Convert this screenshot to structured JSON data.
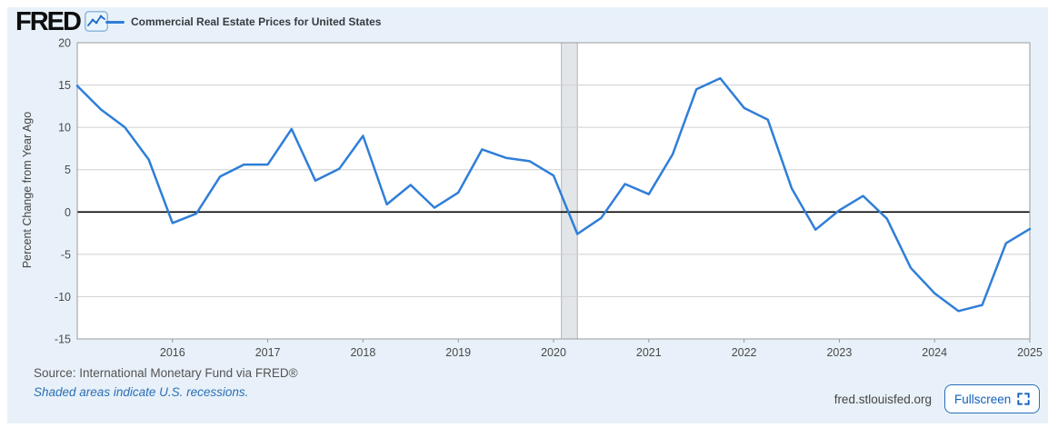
{
  "header": {
    "logo_text": "FRED",
    "legend_label": "Commercial Real Estate Prices for United States"
  },
  "footer": {
    "source": "Source: International Monetary Fund via FRED®",
    "recession_note": "Shaded areas indicate U.S. recessions.",
    "site": "fred.stlouisfed.org",
    "fullscreen_label": "Fullscreen"
  },
  "colors": {
    "card_background": "#e8f1f9",
    "plot_background": "#ffffff",
    "line": "#2f7ed8",
    "gridline": "#cfcfcf",
    "plot_border": "#9a9a9a",
    "zero_line": "#000000",
    "recession_fill": "#e3e6e9",
    "recession_edge": "#aeb4ba",
    "tick_label": "#494949",
    "link_blue": "#2a6fb7",
    "button_blue": "#1560bd"
  },
  "chart_data": {
    "type": "line",
    "title": "Commercial Real Estate Prices for United States",
    "ylabel": "Percent Change from Year Ago",
    "xlabel": "",
    "units": "percent change from year ago",
    "frequency": "quarterly",
    "xlim": [
      2015.0,
      2025.0
    ],
    "ylim": [
      -15,
      20
    ],
    "y_ticks": [
      20,
      15,
      10,
      5,
      0,
      -5,
      -10,
      -15
    ],
    "x_ticks": [
      2016,
      2017,
      2018,
      2019,
      2020,
      2021,
      2022,
      2023,
      2024,
      2025
    ],
    "grid": "horizontal",
    "legend_position": "top-left",
    "x_start": 2015.0,
    "x_step": 0.25,
    "periods": [
      "2015 Q1",
      "2015 Q2",
      "2015 Q3",
      "2015 Q4",
      "2016 Q1",
      "2016 Q2",
      "2016 Q3",
      "2016 Q4",
      "2017 Q1",
      "2017 Q2",
      "2017 Q3",
      "2017 Q4",
      "2018 Q1",
      "2018 Q2",
      "2018 Q3",
      "2018 Q4",
      "2019 Q1",
      "2019 Q2",
      "2019 Q3",
      "2019 Q4",
      "2020 Q1",
      "2020 Q2",
      "2020 Q3",
      "2020 Q4",
      "2021 Q1",
      "2021 Q2",
      "2021 Q3",
      "2021 Q4",
      "2022 Q1",
      "2022 Q2",
      "2022 Q3",
      "2022 Q4",
      "2023 Q1",
      "2023 Q2",
      "2023 Q3",
      "2023 Q4",
      "2024 Q1",
      "2024 Q2",
      "2024 Q3",
      "2024 Q4",
      "2025 Q1"
    ],
    "values": [
      14.9,
      12.1,
      10.0,
      6.2,
      -1.3,
      -0.2,
      4.2,
      5.6,
      5.6,
      9.8,
      3.7,
      5.1,
      9.0,
      0.9,
      3.2,
      0.5,
      2.3,
      7.4,
      6.4,
      6.0,
      4.3,
      -2.6,
      -0.7,
      3.3,
      2.1,
      6.8,
      14.5,
      15.8,
      12.3,
      10.9,
      2.8,
      -2.1,
      0.2,
      1.9,
      -0.8,
      -6.6,
      -9.6,
      -11.7,
      -11.0,
      -3.7,
      -2.0
    ],
    "recession_band": {
      "start_year": 2020.083,
      "end_year": 2020.25
    }
  }
}
